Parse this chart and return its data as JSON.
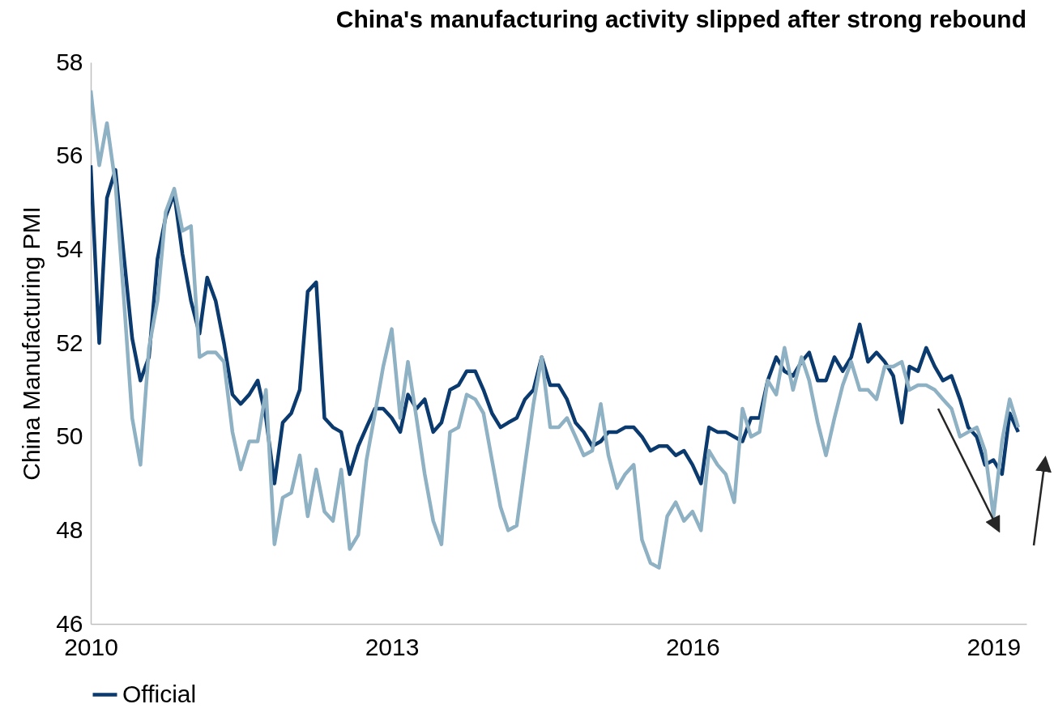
{
  "chart_data": {
    "type": "line",
    "title": "China's manufacturing activity slipped after strong rebound",
    "ylabel": "China Manufacturing PMI",
    "x": [
      "2010-01",
      "2010-02",
      "2010-03",
      "2010-04",
      "2010-05",
      "2010-06",
      "2010-07",
      "2010-08",
      "2010-09",
      "2010-10",
      "2010-11",
      "2010-12",
      "2011-01",
      "2011-02",
      "2011-03",
      "2011-04",
      "2011-05",
      "2011-06",
      "2011-07",
      "2011-08",
      "2011-09",
      "2011-10",
      "2011-11",
      "2011-12",
      "2012-01",
      "2012-02",
      "2012-03",
      "2012-04",
      "2012-05",
      "2012-06",
      "2012-07",
      "2012-08",
      "2012-09",
      "2012-10",
      "2012-11",
      "2012-12",
      "2013-01",
      "2013-02",
      "2013-03",
      "2013-04",
      "2013-05",
      "2013-06",
      "2013-07",
      "2013-08",
      "2013-09",
      "2013-10",
      "2013-11",
      "2013-12",
      "2014-01",
      "2014-02",
      "2014-03",
      "2014-04",
      "2014-05",
      "2014-06",
      "2014-07",
      "2014-08",
      "2014-09",
      "2014-10",
      "2014-11",
      "2014-12",
      "2015-01",
      "2015-02",
      "2015-03",
      "2015-04",
      "2015-05",
      "2015-06",
      "2015-07",
      "2015-08",
      "2015-09",
      "2015-10",
      "2015-11",
      "2015-12",
      "2016-01",
      "2016-02",
      "2016-03",
      "2016-04",
      "2016-05",
      "2016-06",
      "2016-07",
      "2016-08",
      "2016-09",
      "2016-10",
      "2016-11",
      "2016-12",
      "2017-01",
      "2017-02",
      "2017-03",
      "2017-04",
      "2017-05",
      "2017-06",
      "2017-07",
      "2017-08",
      "2017-09",
      "2017-10",
      "2017-11",
      "2017-12",
      "2018-01",
      "2018-02",
      "2018-03",
      "2018-04",
      "2018-05",
      "2018-06",
      "2018-07",
      "2018-08",
      "2018-09",
      "2018-10",
      "2018-11",
      "2018-12",
      "2019-01",
      "2019-02",
      "2019-03",
      "2019-04"
    ],
    "series": [
      {
        "name": "Official",
        "color": "#0a3a6e",
        "values": [
          55.8,
          52.0,
          55.1,
          55.7,
          53.9,
          52.1,
          51.2,
          51.7,
          53.8,
          54.7,
          55.2,
          53.9,
          52.9,
          52.2,
          53.4,
          52.9,
          52.0,
          50.9,
          50.7,
          50.9,
          51.2,
          50.4,
          49.0,
          50.3,
          50.5,
          51.0,
          53.1,
          53.3,
          50.4,
          50.2,
          50.1,
          49.2,
          49.8,
          50.2,
          50.6,
          50.6,
          50.4,
          50.1,
          50.9,
          50.6,
          50.8,
          50.1,
          50.3,
          51.0,
          51.1,
          51.4,
          51.4,
          51.0,
          50.5,
          50.2,
          50.3,
          50.4,
          50.8,
          51.0,
          51.7,
          51.1,
          51.1,
          50.8,
          50.3,
          50.1,
          49.8,
          49.9,
          50.1,
          50.1,
          50.2,
          50.2,
          50.0,
          49.7,
          49.8,
          49.8,
          49.6,
          49.7,
          49.4,
          49.0,
          50.2,
          50.1,
          50.1,
          50.0,
          49.9,
          50.4,
          50.4,
          51.2,
          51.7,
          51.4,
          51.3,
          51.6,
          51.8,
          51.2,
          51.2,
          51.7,
          51.4,
          51.7,
          52.4,
          51.6,
          51.8,
          51.6,
          51.3,
          50.3,
          51.5,
          51.4,
          51.9,
          51.5,
          51.2,
          51.3,
          50.8,
          50.2,
          50.0,
          49.4,
          49.5,
          49.2,
          50.5,
          50.1
        ]
      },
      {
        "color": "#8fb1c4",
        "values": [
          57.4,
          55.8,
          56.7,
          55.4,
          53.0,
          50.4,
          49.4,
          51.9,
          52.9,
          54.8,
          55.3,
          54.4,
          54.5,
          51.7,
          51.8,
          51.8,
          51.6,
          50.1,
          49.3,
          49.9,
          49.9,
          51.0,
          47.7,
          48.7,
          48.8,
          49.6,
          48.3,
          49.3,
          48.4,
          48.2,
          49.3,
          47.6,
          47.9,
          49.5,
          50.5,
          51.5,
          52.3,
          50.4,
          51.6,
          50.4,
          49.2,
          48.2,
          47.7,
          50.1,
          50.2,
          50.9,
          50.8,
          50.5,
          49.5,
          48.5,
          48.0,
          48.1,
          49.4,
          50.7,
          51.7,
          50.2,
          50.2,
          50.4,
          50.0,
          49.6,
          49.7,
          50.7,
          49.6,
          48.9,
          49.2,
          49.4,
          47.8,
          47.3,
          47.2,
          48.3,
          48.6,
          48.2,
          48.4,
          48.0,
          49.7,
          49.4,
          49.2,
          48.6,
          50.6,
          50.0,
          50.1,
          51.2,
          50.9,
          51.9,
          51.0,
          51.7,
          51.2,
          50.3,
          49.6,
          50.4,
          51.1,
          51.6,
          51.0,
          51.0,
          50.8,
          51.5,
          51.5,
          51.6,
          51.0,
          51.1,
          51.1,
          51.0,
          50.8,
          50.6,
          50.0,
          50.1,
          50.2,
          49.7,
          48.3,
          49.9,
          50.8,
          50.2
        ]
      }
    ],
    "xlim": [
      "2010-01",
      "2019-05"
    ],
    "xticks": [
      "2010",
      "2013",
      "2016",
      "2019"
    ],
    "ylim": [
      46,
      58
    ],
    "yticks": [
      46,
      48,
      50,
      52,
      54,
      56,
      58
    ],
    "grid": false,
    "legend": "bottom left"
  }
}
